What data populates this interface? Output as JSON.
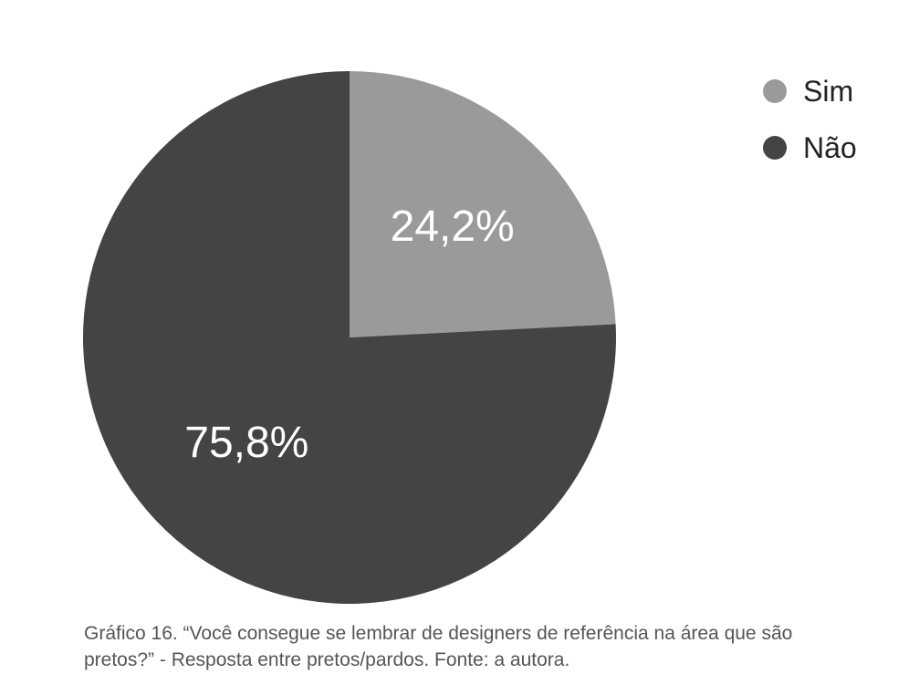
{
  "chart_data": {
    "type": "pie",
    "categories": [
      "Sim",
      "Não"
    ],
    "values": [
      24.2,
      75.8
    ],
    "data_labels": [
      "24,2%",
      "75,8%"
    ],
    "colors": [
      "#9a9a9a",
      "#444444"
    ],
    "label_color": "#ffffff",
    "legend_position": "top-right",
    "start_angle": "12 o'clock, clockwise"
  },
  "legend": {
    "items": [
      {
        "label": "Sim",
        "color": "#9a9a9a"
      },
      {
        "label": "Não",
        "color": "#444444"
      }
    ]
  },
  "caption": {
    "text": "Gráfico 16. “Você consegue se lembrar de designers de referência na área que são pretos?” - Resposta entre pretos/pardos. Fonte: a autora."
  }
}
